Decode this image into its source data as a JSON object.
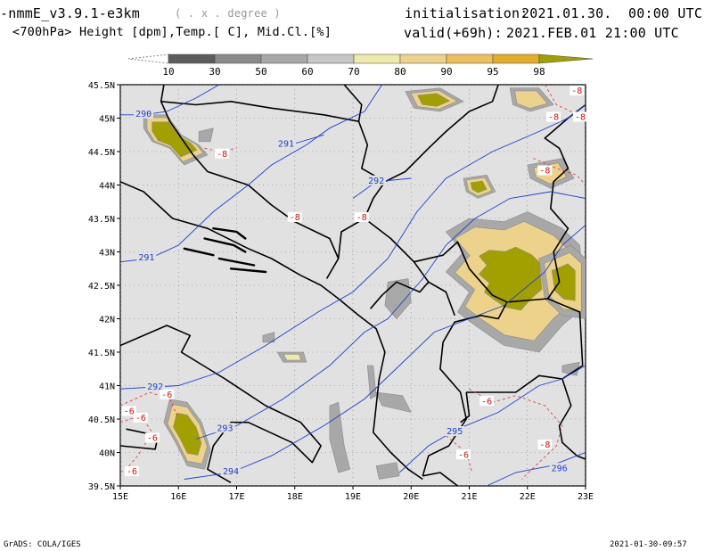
{
  "header": {
    "model": "-nmmE_v3.9.1-e3km",
    "units_note": "( . x . degree )",
    "fields": "<700hPa> Height [dpm],Temp.[ C], Mid.Cl.[%]",
    "init_label": "initialisation:",
    "init_value": "2021.01.30.  00:00 UTC",
    "valid_label": "valid(+69h):",
    "valid_value": "2021.FEB.01 21:00 UTC"
  },
  "colorbar": {
    "levels": [
      "10",
      "30",
      "50",
      "60",
      "70",
      "80",
      "90",
      "95",
      "98"
    ],
    "colors": [
      "#5c5c5c",
      "#8a8a8a",
      "#a8a8a8",
      "#c6c6c6",
      "#eeeaa8",
      "#ecd28a",
      "#ecbe5c",
      "#e3ad2a",
      "#a2a000"
    ]
  },
  "chart_data": {
    "type": "map",
    "projection": "lat-lon",
    "xlim": [
      15,
      23
    ],
    "ylim": [
      39.5,
      45.5
    ],
    "x_ticks": [
      {
        "v": 15,
        "label": "15E"
      },
      {
        "v": 16,
        "label": "16E"
      },
      {
        "v": 17,
        "label": "17E"
      },
      {
        "v": 18,
        "label": "18E"
      },
      {
        "v": 19,
        "label": "19E"
      },
      {
        "v": 20,
        "label": "20E"
      },
      {
        "v": 21,
        "label": "21E"
      },
      {
        "v": 22,
        "label": "22E"
      },
      {
        "v": 23,
        "label": "23E"
      }
    ],
    "y_ticks": [
      {
        "v": 39.5,
        "label": "39.5N"
      },
      {
        "v": 40,
        "label": "40N"
      },
      {
        "v": 40.5,
        "label": "40.5N"
      },
      {
        "v": 41,
        "label": "41N"
      },
      {
        "v": 41.5,
        "label": "41.5N"
      },
      {
        "v": 42,
        "label": "42N"
      },
      {
        "v": 42.5,
        "label": "42.5N"
      },
      {
        "v": 43,
        "label": "43N"
      },
      {
        "v": 43.5,
        "label": "43.5N"
      },
      {
        "v": 44,
        "label": "44N"
      },
      {
        "v": 44.5,
        "label": "44.5N"
      },
      {
        "v": 45,
        "label": "45N"
      },
      {
        "v": 45.5,
        "label": "45.5N"
      }
    ],
    "height_contours": [
      {
        "value": "290",
        "label_at": [
          15.4,
          45.05
        ],
        "points": [
          [
            15.0,
            45.05
          ],
          [
            15.4,
            45.05
          ],
          [
            15.8,
            45.1
          ],
          [
            16.3,
            45.3
          ],
          [
            16.7,
            45.5
          ]
        ]
      },
      {
        "value": "291",
        "label_at": [
          15.45,
          42.9
        ],
        "points": [
          [
            15.0,
            42.85
          ],
          [
            15.5,
            42.9
          ],
          [
            16.0,
            43.1
          ],
          [
            16.6,
            43.6
          ],
          [
            17.2,
            44.0
          ],
          [
            17.6,
            44.3
          ],
          [
            18.2,
            44.6
          ],
          [
            18.6,
            44.85
          ],
          [
            19.2,
            45.1
          ],
          [
            19.5,
            45.5
          ]
        ]
      },
      {
        "value": "291",
        "label_at": [
          17.85,
          44.6
        ],
        "points": [
          [
            18.0,
            44.62
          ],
          [
            18.5,
            44.75
          ]
        ]
      },
      {
        "value": "292",
        "label_at": [
          15.6,
          40.97
        ],
        "points": [
          [
            15.0,
            40.95
          ],
          [
            16.0,
            41.0
          ],
          [
            16.7,
            41.2
          ],
          [
            17.5,
            41.6
          ],
          [
            18.4,
            42.1
          ],
          [
            19.0,
            42.4
          ],
          [
            19.6,
            42.9
          ],
          [
            20.1,
            43.6
          ],
          [
            20.6,
            44.1
          ],
          [
            21.4,
            44.5
          ],
          [
            22.2,
            44.8
          ],
          [
            22.7,
            45.0
          ],
          [
            23.0,
            45.2
          ]
        ]
      },
      {
        "value": "292",
        "label_at": [
          19.4,
          44.05
        ],
        "points": [
          [
            19.0,
            43.8
          ],
          [
            19.4,
            44.05
          ],
          [
            20.0,
            44.1
          ]
        ]
      },
      {
        "value": "293",
        "label_at": [
          16.8,
          40.35
        ],
        "points": [
          [
            16.3,
            40.2
          ],
          [
            17.0,
            40.4
          ],
          [
            17.8,
            40.8
          ],
          [
            18.6,
            41.3
          ],
          [
            19.2,
            41.8
          ],
          [
            19.6,
            42.0
          ],
          [
            20.2,
            42.6
          ],
          [
            20.6,
            43.1
          ],
          [
            21.1,
            43.5
          ],
          [
            21.7,
            43.8
          ],
          [
            22.4,
            43.9
          ],
          [
            23.0,
            43.8
          ]
        ]
      },
      {
        "value": "294",
        "label_at": [
          16.9,
          39.7
        ],
        "points": [
          [
            16.1,
            39.6
          ],
          [
            16.9,
            39.7
          ],
          [
            17.6,
            39.95
          ],
          [
            18.5,
            40.4
          ],
          [
            19.2,
            40.8
          ],
          [
            19.8,
            41.3
          ],
          [
            20.4,
            41.8
          ],
          [
            21.0,
            42.0
          ],
          [
            21.6,
            42.2
          ],
          [
            22.3,
            42.7
          ],
          [
            22.6,
            43.1
          ],
          [
            23.0,
            43.4
          ]
        ]
      },
      {
        "value": "295",
        "label_at": [
          20.75,
          40.3
        ],
        "points": [
          [
            19.8,
            39.7
          ],
          [
            20.3,
            40.1
          ],
          [
            20.8,
            40.35
          ],
          [
            21.5,
            40.6
          ],
          [
            22.2,
            41.0
          ],
          [
            22.6,
            41.1
          ],
          [
            23.0,
            41.3
          ]
        ]
      },
      {
        "value": "296",
        "label_at": [
          22.55,
          39.75
        ],
        "points": [
          [
            21.3,
            39.5
          ],
          [
            21.8,
            39.7
          ],
          [
            22.4,
            39.8
          ],
          [
            23.0,
            40.0
          ]
        ]
      }
    ],
    "temp_labels": [
      {
        "value": "-8",
        "at": [
          16.75,
          44.45
        ]
      },
      {
        "value": "-8",
        "at": [
          18.0,
          43.5
        ]
      },
      {
        "value": "-8",
        "at": [
          19.15,
          43.5
        ]
      },
      {
        "value": "-8",
        "at": [
          22.3,
          44.2
        ]
      },
      {
        "value": "-8",
        "at": [
          22.45,
          45.0
        ]
      },
      {
        "value": "-8",
        "at": [
          22.85,
          45.4
        ]
      },
      {
        "value": "-8",
        "at": [
          23.0,
          45.0
        ]
      },
      {
        "value": "-8",
        "at": [
          22.3,
          40.1
        ]
      },
      {
        "value": "-6",
        "at": [
          15.8,
          40.85
        ]
      },
      {
        "value": "-6",
        "at": [
          15.15,
          40.6
        ]
      },
      {
        "value": "-6",
        "at": [
          15.35,
          40.5
        ]
      },
      {
        "value": "-6",
        "at": [
          15.55,
          40.2
        ]
      },
      {
        "value": "-6",
        "at": [
          15.2,
          39.7
        ]
      },
      {
        "value": "-6",
        "at": [
          21.3,
          40.75
        ]
      },
      {
        "value": "-6",
        "at": [
          20.9,
          39.95
        ]
      }
    ]
  },
  "footer": {
    "left": "GrADS: COLA/IGES",
    "right": "2021-01-30-09:57"
  }
}
